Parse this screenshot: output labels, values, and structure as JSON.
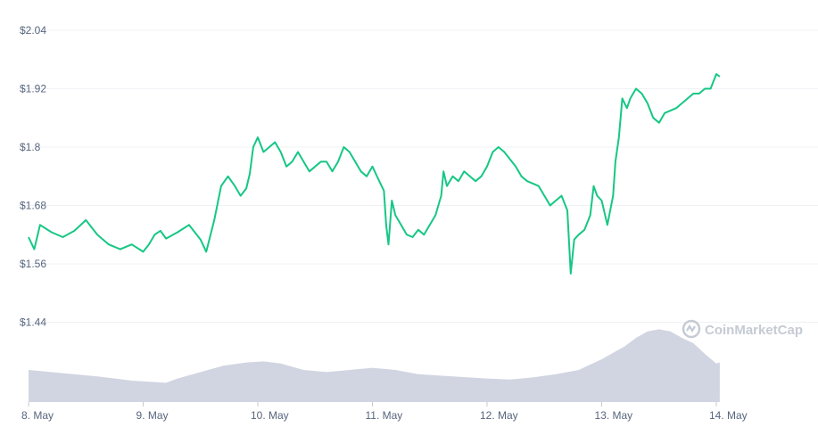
{
  "chart_data": {
    "type": "line",
    "price_series": {
      "x_unit": "days",
      "x_labels": [
        "8. May",
        "9. May",
        "10. May",
        "11. May",
        "12. May",
        "13. May",
        "14. May"
      ],
      "points": [
        [
          0.0,
          1.615
        ],
        [
          0.05,
          1.59
        ],
        [
          0.1,
          1.64
        ],
        [
          0.2,
          1.625
        ],
        [
          0.3,
          1.615
        ],
        [
          0.4,
          1.628
        ],
        [
          0.5,
          1.65
        ],
        [
          0.6,
          1.62
        ],
        [
          0.7,
          1.6
        ],
        [
          0.8,
          1.59
        ],
        [
          0.9,
          1.6
        ],
        [
          1.0,
          1.585
        ],
        [
          1.05,
          1.6
        ],
        [
          1.1,
          1.62
        ],
        [
          1.15,
          1.628
        ],
        [
          1.2,
          1.612
        ],
        [
          1.3,
          1.625
        ],
        [
          1.4,
          1.64
        ],
        [
          1.5,
          1.61
        ],
        [
          1.55,
          1.585
        ],
        [
          1.62,
          1.65
        ],
        [
          1.68,
          1.72
        ],
        [
          1.74,
          1.74
        ],
        [
          1.8,
          1.72
        ],
        [
          1.85,
          1.7
        ],
        [
          1.9,
          1.715
        ],
        [
          1.93,
          1.745
        ],
        [
          1.96,
          1.8
        ],
        [
          2.0,
          1.82
        ],
        [
          2.05,
          1.79
        ],
        [
          2.1,
          1.8
        ],
        [
          2.15,
          1.81
        ],
        [
          2.2,
          1.79
        ],
        [
          2.25,
          1.76
        ],
        [
          2.3,
          1.77
        ],
        [
          2.35,
          1.79
        ],
        [
          2.4,
          1.77
        ],
        [
          2.45,
          1.75
        ],
        [
          2.5,
          1.76
        ],
        [
          2.55,
          1.77
        ],
        [
          2.6,
          1.77
        ],
        [
          2.65,
          1.75
        ],
        [
          2.7,
          1.77
        ],
        [
          2.75,
          1.8
        ],
        [
          2.8,
          1.79
        ],
        [
          2.85,
          1.77
        ],
        [
          2.9,
          1.75
        ],
        [
          2.95,
          1.74
        ],
        [
          3.0,
          1.76
        ],
        [
          3.05,
          1.735
        ],
        [
          3.1,
          1.71
        ],
        [
          3.12,
          1.64
        ],
        [
          3.14,
          1.6
        ],
        [
          3.17,
          1.69
        ],
        [
          3.2,
          1.66
        ],
        [
          3.25,
          1.64
        ],
        [
          3.3,
          1.62
        ],
        [
          3.35,
          1.615
        ],
        [
          3.4,
          1.63
        ],
        [
          3.45,
          1.62
        ],
        [
          3.5,
          1.64
        ],
        [
          3.55,
          1.66
        ],
        [
          3.6,
          1.7
        ],
        [
          3.62,
          1.75
        ],
        [
          3.65,
          1.72
        ],
        [
          3.7,
          1.74
        ],
        [
          3.75,
          1.73
        ],
        [
          3.8,
          1.75
        ],
        [
          3.85,
          1.74
        ],
        [
          3.9,
          1.73
        ],
        [
          3.95,
          1.74
        ],
        [
          4.0,
          1.76
        ],
        [
          4.05,
          1.79
        ],
        [
          4.1,
          1.8
        ],
        [
          4.15,
          1.79
        ],
        [
          4.2,
          1.775
        ],
        [
          4.25,
          1.76
        ],
        [
          4.3,
          1.74
        ],
        [
          4.35,
          1.73
        ],
        [
          4.4,
          1.725
        ],
        [
          4.45,
          1.72
        ],
        [
          4.5,
          1.7
        ],
        [
          4.55,
          1.68
        ],
        [
          4.6,
          1.69
        ],
        [
          4.65,
          1.7
        ],
        [
          4.7,
          1.67
        ],
        [
          4.73,
          1.54
        ],
        [
          4.76,
          1.61
        ],
        [
          4.8,
          1.62
        ],
        [
          4.85,
          1.63
        ],
        [
          4.9,
          1.66
        ],
        [
          4.93,
          1.72
        ],
        [
          4.96,
          1.7
        ],
        [
          5.0,
          1.69
        ],
        [
          5.05,
          1.64
        ],
        [
          5.1,
          1.7
        ],
        [
          5.12,
          1.77
        ],
        [
          5.15,
          1.82
        ],
        [
          5.18,
          1.9
        ],
        [
          5.22,
          1.88
        ],
        [
          5.25,
          1.9
        ],
        [
          5.3,
          1.92
        ],
        [
          5.35,
          1.91
        ],
        [
          5.4,
          1.89
        ],
        [
          5.45,
          1.86
        ],
        [
          5.5,
          1.85
        ],
        [
          5.55,
          1.87
        ],
        [
          5.6,
          1.875
        ],
        [
          5.65,
          1.88
        ],
        [
          5.7,
          1.89
        ],
        [
          5.75,
          1.9
        ],
        [
          5.8,
          1.91
        ],
        [
          5.85,
          1.91
        ],
        [
          5.9,
          1.92
        ],
        [
          5.95,
          1.92
        ],
        [
          6.0,
          1.95
        ],
        [
          6.03,
          1.945
        ]
      ],
      "ylabels": [
        "$2.04",
        "$1.92",
        "$1.8",
        "$1.68",
        "$1.56",
        "$1.44"
      ],
      "ylim": [
        1.44,
        2.04
      ]
    },
    "volume_series": {
      "x_unit": "days",
      "points": [
        [
          0.0,
          0.3
        ],
        [
          0.3,
          0.27
        ],
        [
          0.6,
          0.24
        ],
        [
          0.9,
          0.2
        ],
        [
          1.2,
          0.18
        ],
        [
          1.3,
          0.22
        ],
        [
          1.5,
          0.28
        ],
        [
          1.7,
          0.34
        ],
        [
          1.9,
          0.37
        ],
        [
          2.05,
          0.38
        ],
        [
          2.2,
          0.36
        ],
        [
          2.4,
          0.3
        ],
        [
          2.6,
          0.28
        ],
        [
          2.8,
          0.3
        ],
        [
          3.0,
          0.32
        ],
        [
          3.2,
          0.3
        ],
        [
          3.4,
          0.26
        ],
        [
          3.7,
          0.24
        ],
        [
          4.0,
          0.22
        ],
        [
          4.2,
          0.21
        ],
        [
          4.4,
          0.23
        ],
        [
          4.6,
          0.26
        ],
        [
          4.8,
          0.3
        ],
        [
          5.0,
          0.4
        ],
        [
          5.1,
          0.46
        ],
        [
          5.2,
          0.52
        ],
        [
          5.3,
          0.6
        ],
        [
          5.4,
          0.66
        ],
        [
          5.5,
          0.68
        ],
        [
          5.6,
          0.66
        ],
        [
          5.7,
          0.6
        ],
        [
          5.8,
          0.55
        ],
        [
          5.9,
          0.45
        ],
        [
          6.0,
          0.36
        ],
        [
          6.03,
          0.37
        ]
      ]
    }
  },
  "watermark": {
    "text": "CoinMarketCap",
    "icon": "coinmarketcap-logo-icon",
    "color": "#c5cbd4"
  },
  "colors": {
    "line": "#16c784",
    "volume": "#d1d5e1",
    "grid": "#eff2f5",
    "label": "#58667e"
  }
}
